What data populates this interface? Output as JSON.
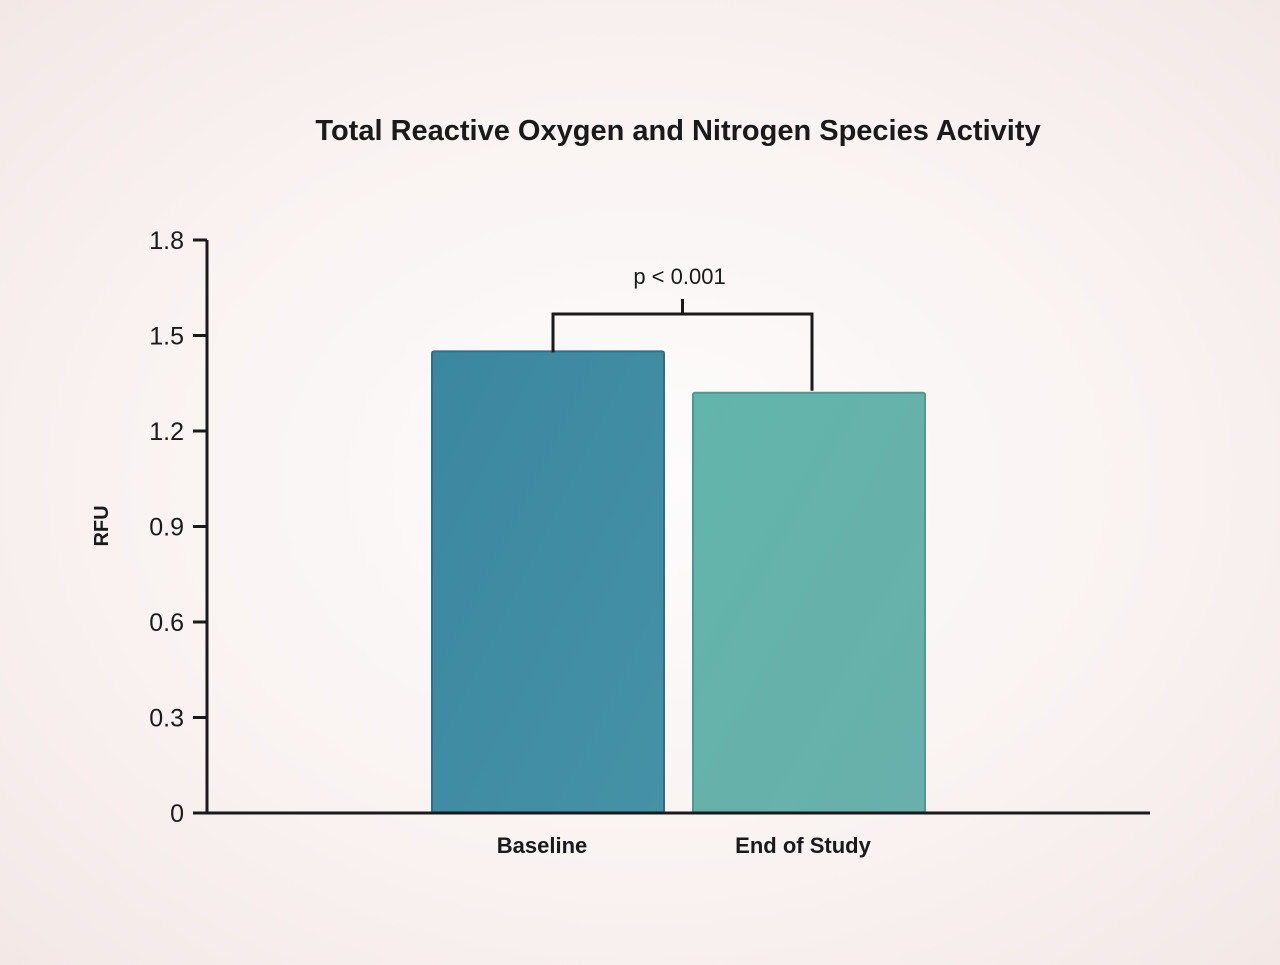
{
  "colors": {
    "background": "#f9f2f1",
    "axis": "#1a1a1a",
    "text": "#1a1a1a",
    "bar_baseline": "#3f8ba4",
    "bar_end": "#64b5ad"
  },
  "chart_data": {
    "type": "bar",
    "title": "Total Reactive Oxygen and Nitrogen Species Activity",
    "xlabel": "",
    "ylabel": "RFU",
    "categories": [
      "Baseline",
      "End of Study"
    ],
    "values": [
      1.45,
      1.32
    ],
    "ylim": [
      0,
      1.8
    ],
    "yticks": [
      "0",
      "0.3",
      "0.6",
      "0.9",
      "1.2",
      "1.5",
      "1.8"
    ],
    "grid": false,
    "legend": "none",
    "annotations": [
      {
        "type": "significance-bracket",
        "text": "p < 0.001",
        "between": [
          "Baseline",
          "End of Study"
        ]
      }
    ]
  }
}
